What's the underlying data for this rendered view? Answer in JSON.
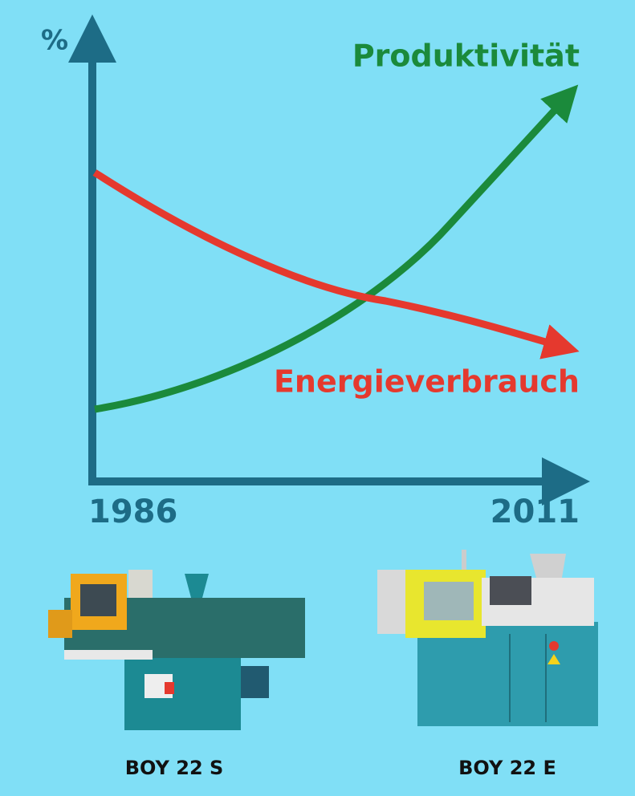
{
  "axis": {
    "y_label": "%",
    "x_start": "1986",
    "x_end": "2011"
  },
  "curves": [
    {
      "label": "Produktivität"
    },
    {
      "label": "Energieverbrauch"
    }
  ],
  "machines": [
    {
      "label": "BOY 22 S"
    },
    {
      "label": "BOY 22 E"
    }
  ]
}
